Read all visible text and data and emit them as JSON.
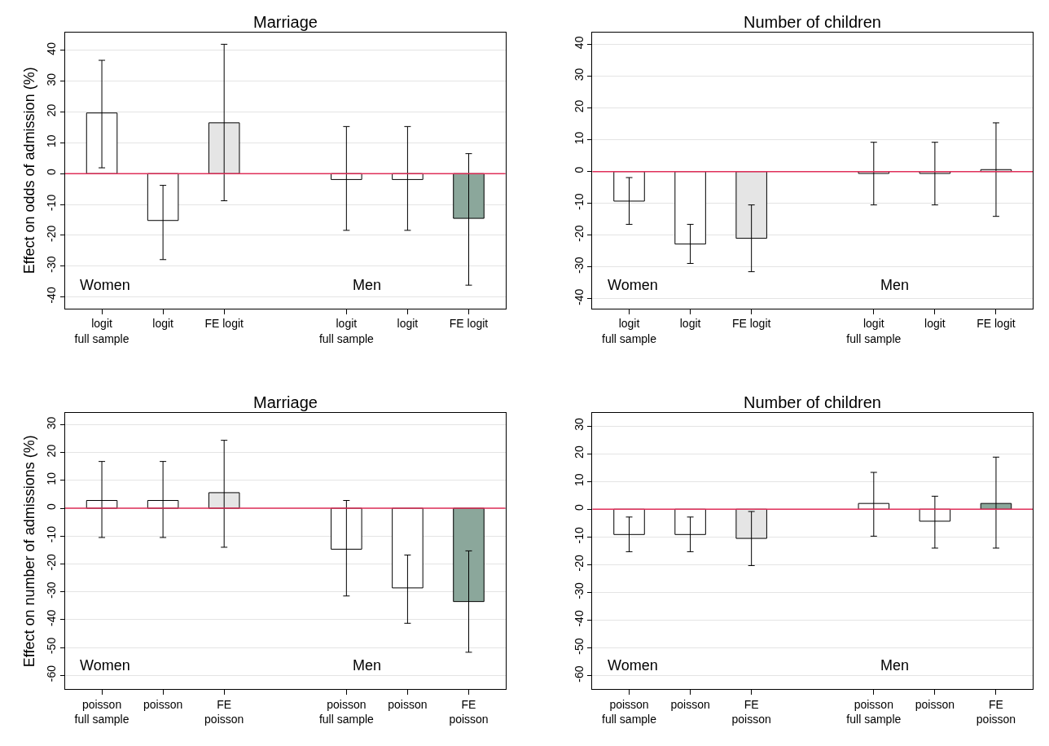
{
  "chart_data": [
    {
      "type": "bar",
      "title": "Marriage",
      "ylabel": "Effect on odds of admission (%)",
      "categories": [
        "logit\nfull sample",
        "logit",
        "FE logit",
        null,
        "logit\nfull sample",
        "logit",
        "FE logit"
      ],
      "values": [
        19.7,
        -15.2,
        16.5,
        null,
        -1.9,
        -1.9,
        -14.5
      ],
      "errors": [
        [
          1.9,
          36.8
        ],
        [
          -27.9,
          -3.8
        ],
        [
          -8.8,
          42
        ],
        null,
        [
          -18.4,
          15.3
        ],
        [
          -18.4,
          15.3
        ],
        [
          -36.2,
          6.5
        ]
      ],
      "colors": [
        "#ffffff",
        "#ffffff",
        "#e5e5e5",
        "#ffffff",
        "#ffffff",
        "#ffffff",
        "#8ba79b"
      ],
      "ylim": [
        -43.7,
        45.8
      ],
      "yticks": [
        -40,
        -30,
        -20,
        -10,
        0,
        10,
        20,
        30,
        40
      ],
      "grid": "y",
      "ref_lines": [
        {
          "axis": "y",
          "value": 0,
          "color": "#e0305a"
        }
      ],
      "annotations": [
        "Women",
        "Men"
      ]
    },
    {
      "type": "bar",
      "title": "Number of children",
      "categories": [
        "logit\nfull sample",
        "logit",
        "FE logit",
        null,
        "logit\nfull sample",
        "logit",
        "FE logit"
      ],
      "values": [
        -9.3,
        -22.8,
        -21.0,
        null,
        -0.6,
        -0.6,
        0.6
      ],
      "errors": [
        [
          -16.6,
          -1.9
        ],
        [
          -28.9,
          -16.6
        ],
        [
          -31.5,
          -10.5
        ],
        null,
        [
          -10.5,
          9.2
        ],
        [
          -10.5,
          9.2
        ],
        [
          -14.1,
          15.3
        ]
      ],
      "colors": [
        "#ffffff",
        "#ffffff",
        "#e5e5e5",
        "#ffffff",
        "#ffffff",
        "#ffffff",
        "#e5e5e5"
      ],
      "ylim": [
        -43.0,
        43.7
      ],
      "yticks": [
        -40,
        -30,
        -20,
        -10,
        0,
        10,
        20,
        30,
        40
      ],
      "grid": "y",
      "ref_lines": [
        {
          "axis": "y",
          "value": 0,
          "color": "#e0305a"
        }
      ],
      "annotations": [
        "Women",
        "Men"
      ]
    },
    {
      "type": "bar",
      "title": "Marriage",
      "ylabel": "Effect on number of admissions (%)",
      "categories": [
        "poisson\nfull sample",
        "poisson",
        "FE\npoisson",
        null,
        "poisson\nfull sample",
        "poisson",
        "FE\npoisson"
      ],
      "values": [
        2.8,
        2.8,
        5.6,
        null,
        -14.7,
        -28.6,
        -33.5
      ],
      "errors": [
        [
          -10.5,
          16.8
        ],
        [
          -10.5,
          16.8
        ],
        [
          -14.0,
          24.4
        ],
        null,
        [
          -31.5,
          2.8
        ],
        [
          -41.3,
          -16.8
        ],
        [
          -51.7,
          -15.3
        ]
      ],
      "colors": [
        "#ffffff",
        "#ffffff",
        "#e5e5e5",
        "#ffffff",
        "#ffffff",
        "#ffffff",
        "#8ba79b"
      ],
      "ylim": [
        -64.9,
        34.1
      ],
      "yticks": [
        -60,
        -50,
        -40,
        -30,
        -20,
        -10,
        0,
        10,
        20,
        30
      ],
      "grid": "y",
      "ref_lines": [
        {
          "axis": "y",
          "value": 0,
          "color": "#e0305a"
        }
      ],
      "annotations": [
        "Women",
        "Men"
      ]
    },
    {
      "type": "bar",
      "title": "Number of children",
      "categories": [
        "poisson\nfull sample",
        "poisson",
        "FE\npoisson",
        null,
        "poisson\nfull sample",
        "poisson",
        "FE\npoisson"
      ],
      "values": [
        -9.1,
        -9.1,
        -10.5,
        null,
        2.1,
        -4.3,
        2.1
      ],
      "errors": [
        [
          -15.3,
          -2.8
        ],
        [
          -15.3,
          -2.8
        ],
        [
          -20.3,
          -0.8
        ],
        null,
        [
          -9.7,
          13.3
        ],
        [
          -14.0,
          4.7
        ],
        [
          -14.0,
          18.8
        ]
      ],
      "colors": [
        "#ffffff",
        "#ffffff",
        "#e5e5e5",
        "#ffffff",
        "#ffffff",
        "#ffffff",
        "#8ba79b"
      ],
      "ylim": [
        -64.8,
        34.6
      ],
      "yticks": [
        -60,
        -50,
        -40,
        -30,
        -20,
        -10,
        0,
        10,
        20,
        30
      ],
      "grid": "y",
      "ref_lines": [
        {
          "axis": "y",
          "value": 0,
          "color": "#e0305a"
        }
      ],
      "annotations": [
        "Women",
        "Men"
      ]
    }
  ]
}
